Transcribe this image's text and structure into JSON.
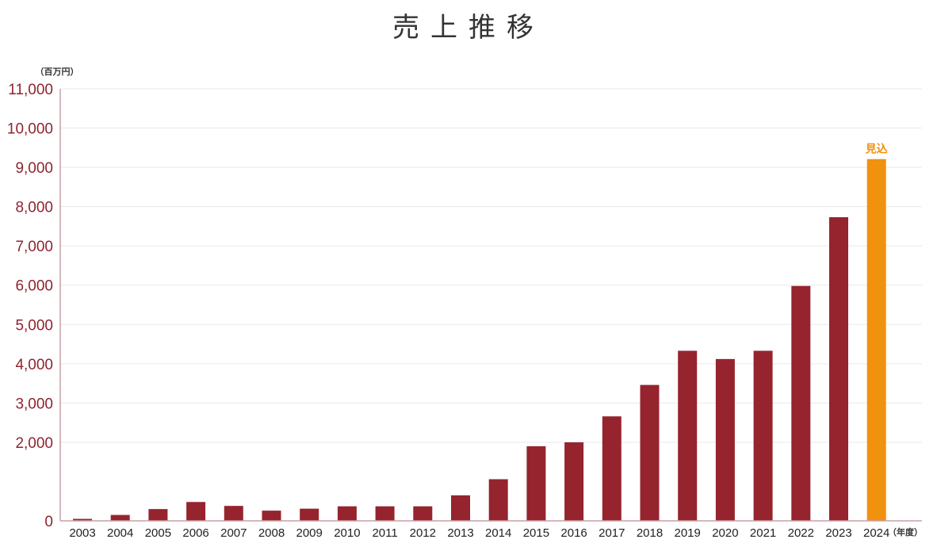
{
  "chart_data": {
    "type": "bar",
    "title": "売上推移",
    "ylabel": "（百万円）",
    "xlabel": "（年度）",
    "ylim": [
      0,
      11000
    ],
    "yticks": [
      "0",
      "2,000",
      "3,000",
      "4,000",
      "5,000",
      "6,000",
      "7,000",
      "8,000",
      "9,000",
      "10,000",
      "11,000"
    ],
    "ytick_values": [
      0,
      2000,
      3000,
      4000,
      5000,
      6000,
      7000,
      8000,
      9000,
      10000,
      11000
    ],
    "categories": [
      "2003",
      "2004",
      "2005",
      "2006",
      "2007",
      "2008",
      "2009",
      "2010",
      "2011",
      "2012",
      "2013",
      "2014",
      "2015",
      "2016",
      "2017",
      "2018",
      "2019",
      "2020",
      "2021",
      "2022",
      "2023",
      "2024"
    ],
    "values": [
      50,
      150,
      300,
      480,
      380,
      260,
      310,
      370,
      370,
      370,
      650,
      1060,
      1900,
      2000,
      2660,
      3460,
      4330,
      4120,
      4330,
      5980,
      7730,
      9210
    ],
    "highlight": {
      "category": "2024",
      "label": "見込",
      "color": "#f0920e"
    },
    "bar_color": "#95242f",
    "grid": true
  }
}
